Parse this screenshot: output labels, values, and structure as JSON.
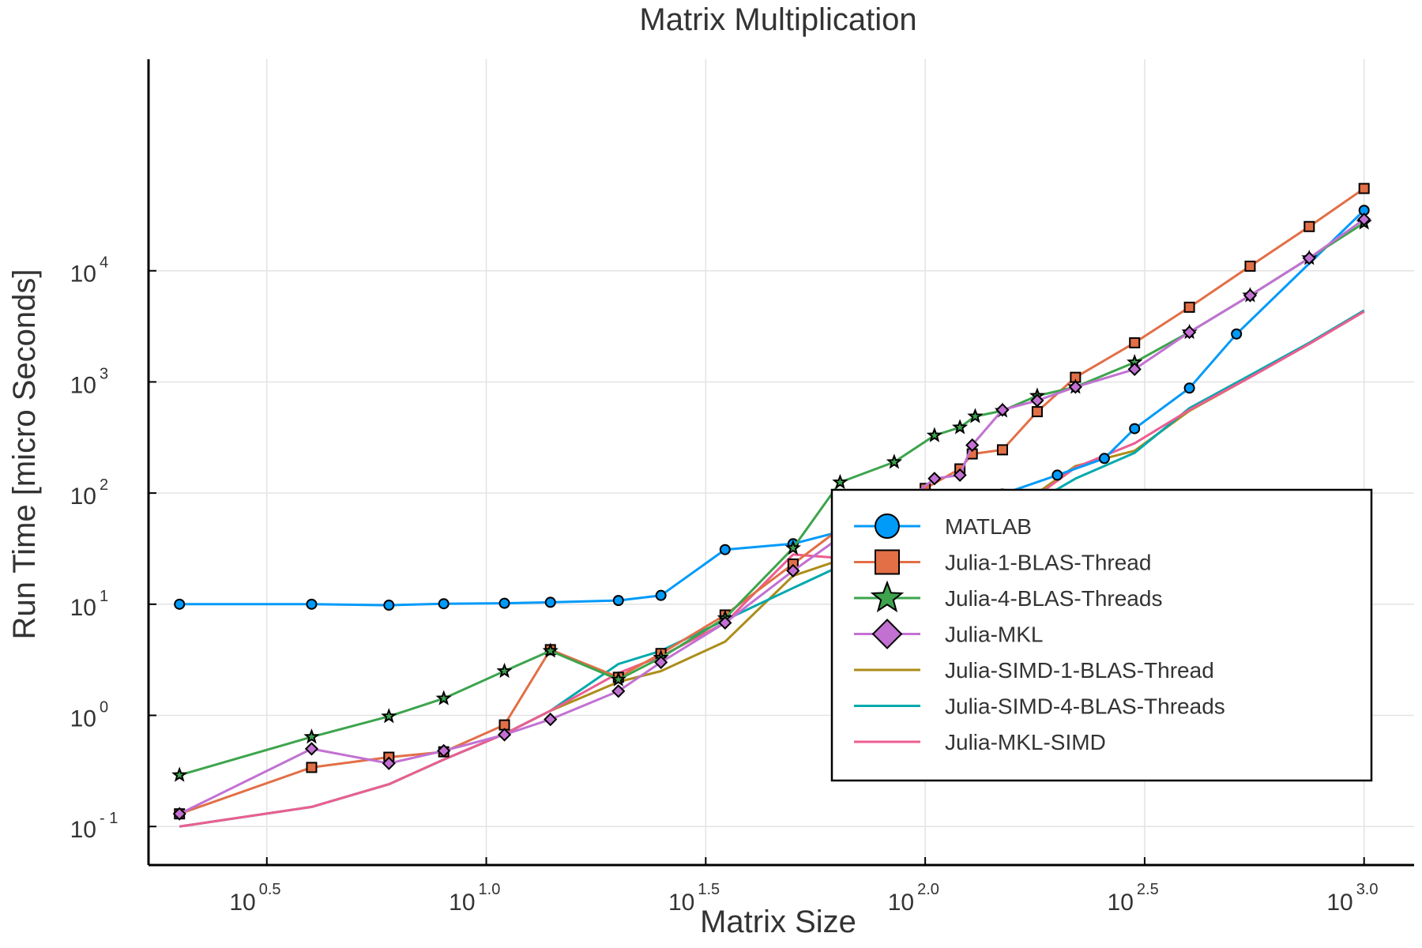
{
  "chart_data": {
    "type": "line",
    "title": "Matrix Multiplication",
    "xlabel": "Matrix Size",
    "ylabel": "Run Time  [micro Seconds]",
    "x_scale": "log",
    "y_scale": "log",
    "xlim": [
      1.7,
      1300
    ],
    "ylim": [
      0.045,
      800000
    ],
    "grid": true,
    "legend_position": "right",
    "x_ticks": [
      {
        "base": "10",
        "exp": "0.5",
        "value": 3.1623
      },
      {
        "base": "10",
        "exp": "1.0",
        "value": 10
      },
      {
        "base": "10",
        "exp": "1.5",
        "value": 31.623
      },
      {
        "base": "10",
        "exp": "2.0",
        "value": 100
      },
      {
        "base": "10",
        "exp": "2.5",
        "value": 316.23
      },
      {
        "base": "10",
        "exp": "3.0",
        "value": 1000
      }
    ],
    "y_ticks": [
      {
        "base": "10",
        "exp": "- 1",
        "value": 0.1
      },
      {
        "base": "10",
        "exp": "0",
        "value": 1
      },
      {
        "base": "10",
        "exp": "1",
        "value": 10
      },
      {
        "base": "10",
        "exp": "2",
        "value": 100
      },
      {
        "base": "10",
        "exp": "3",
        "value": 1000
      },
      {
        "base": "10",
        "exp": "4",
        "value": 10000
      }
    ],
    "series": [
      {
        "name": "MATLAB",
        "color": "#009af9",
        "marker": "circle",
        "x": [
          2,
          4,
          6,
          8,
          11,
          14,
          20,
          25,
          35,
          50,
          64,
          70,
          80,
          100,
          128,
          150,
          200,
          256,
          300,
          400,
          512,
          1000
        ],
        "y": [
          10,
          10,
          9.8,
          10.1,
          10.2,
          10.4,
          10.8,
          12,
          31,
          35,
          45,
          55,
          45,
          72,
          92,
          98,
          145,
          205,
          380,
          880,
          2700,
          35000
        ]
      },
      {
        "name": "Julia-1-BLAS-Thread",
        "color": "#e26f46",
        "marker": "square",
        "x": [
          2,
          4,
          6,
          8,
          11,
          14,
          20,
          25,
          35,
          50,
          64,
          70,
          100,
          120,
          128,
          150,
          180,
          220,
          300,
          400,
          550,
          750,
          1000
        ],
        "y": [
          0.13,
          0.34,
          0.42,
          0.47,
          0.82,
          3.9,
          2.2,
          3.6,
          8,
          23,
          48,
          50,
          110,
          165,
          225,
          245,
          540,
          1100,
          2250,
          4700,
          11000,
          25000,
          55000
        ]
      },
      {
        "name": "Julia-4-BLAS-Threads",
        "color": "#3da44d",
        "marker": "star",
        "x": [
          2,
          4,
          6,
          8,
          11,
          14,
          20,
          25,
          35,
          50,
          64,
          85,
          105,
          120,
          130,
          150,
          180,
          220,
          300,
          400,
          550,
          750,
          1000
        ],
        "y": [
          0.29,
          0.64,
          0.98,
          1.42,
          2.5,
          3.8,
          2.1,
          3.3,
          7.5,
          32,
          125,
          190,
          330,
          390,
          490,
          550,
          750,
          900,
          1500,
          2800,
          6000,
          13000,
          27000
        ]
      },
      {
        "name": "Julia-MKL",
        "color": "#c271d2",
        "marker": "diamond",
        "x": [
          2,
          4,
          6,
          8,
          11,
          14,
          20,
          25,
          35,
          50,
          64,
          85,
          105,
          120,
          128,
          150,
          180,
          220,
          300,
          400,
          550,
          750,
          1000
        ],
        "y": [
          0.13,
          0.5,
          0.37,
          0.48,
          0.67,
          0.92,
          1.65,
          3.0,
          6.8,
          20,
          40,
          70,
          135,
          145,
          270,
          560,
          680,
          900,
          1300,
          2800,
          6000,
          13000,
          29000
        ]
      },
      {
        "name": "Julia-SIMD-1-BLAS-Thread",
        "color": "#ac8d18",
        "marker": "none",
        "x": [
          2,
          4,
          6,
          8,
          11,
          14,
          20,
          25,
          35,
          50,
          64,
          85,
          100,
          128,
          150,
          180,
          220,
          300,
          400,
          550,
          750,
          1000
        ],
        "y": [
          0.1,
          0.15,
          0.24,
          0.4,
          0.68,
          1.1,
          2.0,
          2.5,
          4.6,
          18,
          25,
          28,
          35,
          68,
          75,
          100,
          175,
          240,
          550,
          1100,
          2200,
          4300
        ]
      },
      {
        "name": "Julia-SIMD-4-BLAS-Threads",
        "color": "#00a9ad",
        "marker": "none",
        "x": [
          2,
          4,
          6,
          8,
          11,
          14,
          20,
          25,
          35,
          50,
          64,
          85,
          100,
          128,
          150,
          180,
          220,
          300,
          400,
          550,
          750,
          1000
        ],
        "y": [
          0.1,
          0.15,
          0.24,
          0.4,
          0.68,
          1.1,
          2.9,
          3.8,
          7.2,
          14,
          22,
          26,
          32,
          45,
          58,
          85,
          135,
          230,
          580,
          1150,
          2250,
          4400
        ]
      },
      {
        "name": "Julia-MKL-SIMD",
        "color": "#ed5d92",
        "marker": "none",
        "x": [
          2,
          4,
          6,
          8,
          11,
          14,
          20,
          25,
          35,
          50,
          64,
          85,
          100,
          120,
          128,
          150,
          180,
          220,
          300,
          400,
          550,
          750,
          1000
        ],
        "y": [
          0.1,
          0.15,
          0.24,
          0.4,
          0.68,
          1.1,
          2.4,
          3.4,
          6.8,
          28,
          26,
          30,
          38,
          58,
          57,
          75,
          95,
          170,
          280,
          560,
          1100,
          2200,
          4300
        ]
      }
    ]
  }
}
